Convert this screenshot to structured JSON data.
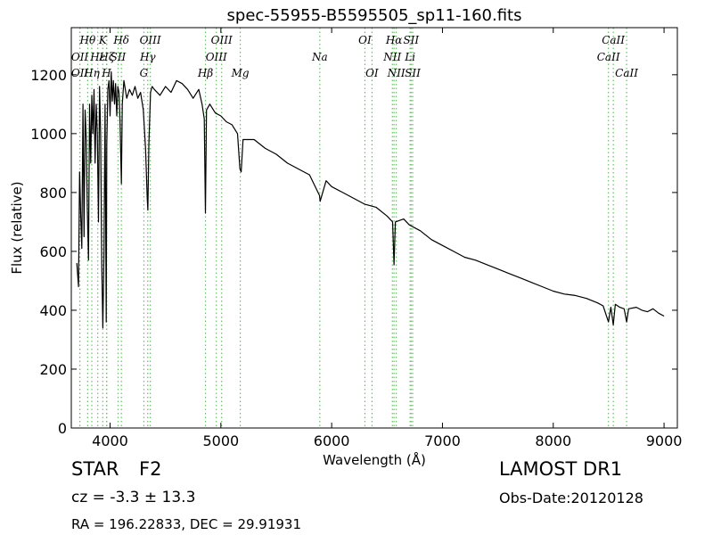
{
  "info": {
    "object_class": "STAR",
    "subclass": "F2",
    "redshift": "cz = -3.3  ± 13.3",
    "coordinates": "RA = 196.22833, DEC = 29.91931",
    "survey": "LAMOST DR1",
    "obs_date": "Obs-Date:20120128"
  },
  "chart_data": {
    "type": "line",
    "title": "spec-55955-B5595505_sp11-160.fits",
    "xlabel": "Wavelength (Å)",
    "ylabel": "Flux (relative)",
    "xlim": [
      3650,
      9120
    ],
    "ylim": [
      0,
      1360
    ],
    "xticks": [
      4000,
      5000,
      6000,
      7000,
      8000,
      9000
    ],
    "yticks": [
      0,
      200,
      400,
      600,
      800,
      1000,
      1200
    ],
    "grid": false,
    "series": [
      {
        "color": "#000000",
        "x": [
          3700,
          3715,
          3725,
          3735,
          3745,
          3755,
          3765,
          3775,
          3785,
          3795,
          3805,
          3815,
          3825,
          3835,
          3845,
          3855,
          3865,
          3875,
          3885,
          3895,
          3905,
          3915,
          3925,
          3935,
          3945,
          3955,
          3965,
          3970,
          3980,
          3990,
          4000,
          4010,
          4020,
          4030,
          4040,
          4050,
          4060,
          4070,
          4080,
          4090,
          4102,
          4110,
          4125,
          4150,
          4175,
          4200,
          4225,
          4250,
          4275,
          4300,
          4320,
          4335,
          4341,
          4350,
          4365,
          4380,
          4400,
          4450,
          4500,
          4550,
          4600,
          4650,
          4700,
          4750,
          4800,
          4830,
          4850,
          4861,
          4870,
          4900,
          4950,
          5000,
          5050,
          5100,
          5150,
          5172,
          5183,
          5200,
          5300,
          5400,
          5500,
          5600,
          5700,
          5800,
          5890,
          5896,
          5950,
          6000,
          6100,
          6200,
          6300,
          6400,
          6500,
          6550,
          6563,
          6575,
          6650,
          6700,
          6800,
          6900,
          7000,
          7100,
          7200,
          7300,
          7400,
          7500,
          7600,
          7700,
          7800,
          7900,
          8000,
          8100,
          8200,
          8300,
          8400,
          8450,
          8498,
          8520,
          8542,
          8560,
          8600,
          8640,
          8662,
          8680,
          8750,
          8800,
          8850,
          8900,
          8950,
          9000
        ],
        "y": [
          560,
          480,
          870,
          720,
          610,
          1100,
          650,
          1080,
          980,
          740,
          570,
          1100,
          900,
          1130,
          1000,
          1150,
          900,
          1100,
          1000,
          700,
          1160,
          1000,
          550,
          340,
          600,
          1100,
          360,
          960,
          1150,
          1180,
          1060,
          1210,
          1110,
          1180,
          1100,
          1170,
          1060,
          1160,
          1140,
          1040,
          830,
          1100,
          1180,
          1120,
          1150,
          1130,
          1160,
          1120,
          1140,
          1080,
          950,
          780,
          740,
          960,
          1140,
          1160,
          1150,
          1130,
          1160,
          1140,
          1180,
          1170,
          1150,
          1120,
          1150,
          1100,
          1050,
          730,
          1080,
          1100,
          1070,
          1060,
          1040,
          1030,
          1000,
          880,
          870,
          980,
          980,
          950,
          930,
          900,
          880,
          860,
          790,
          770,
          840,
          820,
          800,
          780,
          760,
          750,
          720,
          700,
          555,
          700,
          710,
          690,
          670,
          640,
          620,
          600,
          580,
          570,
          555,
          540,
          525,
          510,
          495,
          480,
          465,
          455,
          450,
          440,
          425,
          415,
          360,
          410,
          350,
          420,
          410,
          405,
          360,
          405,
          410,
          400,
          395,
          405,
          390,
          380
        ]
      }
    ],
    "spectral_lines": [
      {
        "label": "Hθ",
        "x": 3798,
        "row": 1
      },
      {
        "label": "OII",
        "x": 3727,
        "row": 2
      },
      {
        "label": "OII",
        "x": 3727,
        "row": 3
      },
      {
        "label": "K",
        "x": 3934,
        "row": 1
      },
      {
        "label": "Hη",
        "x": 3835,
        "row": 3
      },
      {
        "label": "Hε",
        "x": 3889,
        "row": 2
      },
      {
        "label": "Hζ",
        "x": 3970,
        "row": 2
      },
      {
        "label": "H",
        "x": 3968,
        "row": 3
      },
      {
        "label": "SII",
        "x": 4072,
        "row": 2
      },
      {
        "label": "Hδ",
        "x": 4102,
        "row": 1
      },
      {
        "label": "OIII",
        "x": 4363,
        "row": 1
      },
      {
        "label": "Hγ",
        "x": 4340,
        "row": 2
      },
      {
        "label": "G",
        "x": 4305,
        "row": 3
      },
      {
        "label": "OIII",
        "x": 5007,
        "row": 1
      },
      {
        "label": "OIII",
        "x": 4959,
        "row": 2
      },
      {
        "label": "Hβ",
        "x": 4861,
        "row": 3
      },
      {
        "label": "Mg",
        "x": 5175,
        "row": 3
      },
      {
        "label": "Na",
        "x": 5893,
        "row": 2
      },
      {
        "label": "OI",
        "x": 6300,
        "row": 1
      },
      {
        "label": "OI",
        "x": 6364,
        "row": 3
      },
      {
        "label": "Hα",
        "x": 6563,
        "row": 1
      },
      {
        "label": "SII",
        "x": 6717,
        "row": 1
      },
      {
        "label": "NII",
        "x": 6548,
        "row": 2
      },
      {
        "label": "Li",
        "x": 6708,
        "row": 2
      },
      {
        "label": "NII",
        "x": 6583,
        "row": 3
      },
      {
        "label": "SII",
        "x": 6731,
        "row": 3
      },
      {
        "label": "CaII",
        "x": 8542,
        "row": 1
      },
      {
        "label": "CaII",
        "x": 8498,
        "row": 2
      },
      {
        "label": "CaII",
        "x": 8662,
        "row": 3
      }
    ]
  }
}
